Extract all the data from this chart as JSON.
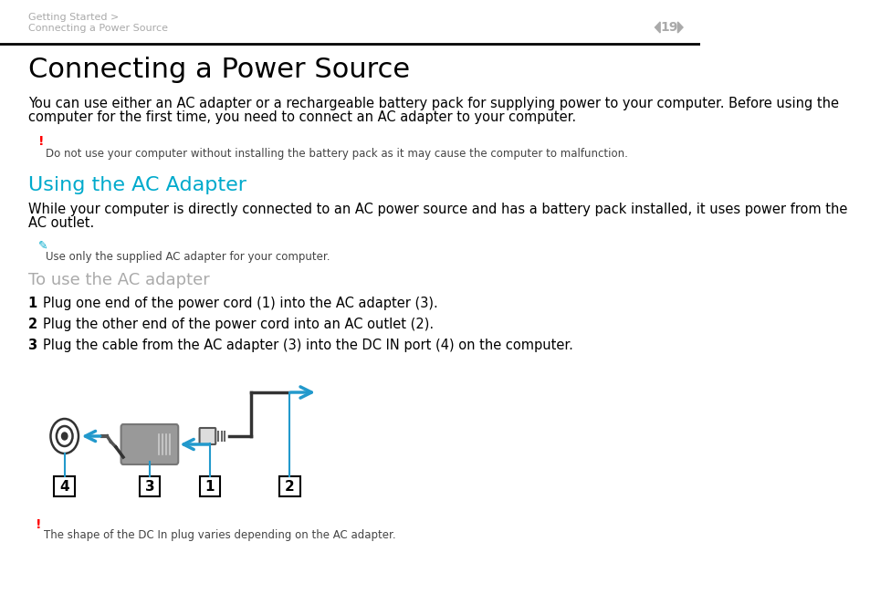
{
  "bg_color": "#ffffff",
  "header_breadcrumb_line1": "Getting Started >",
  "header_breadcrumb_line2": "Connecting a Power Source",
  "header_page": "19",
  "header_color": "#aaaaaa",
  "separator_color": "#000000",
  "title": "Connecting a Power Source",
  "title_fontsize": 22,
  "body_text1_line1": "You can use either an AC adapter or a rechargeable battery pack for supplying power to your computer. Before using the",
  "body_text1_line2": "computer for the first time, you need to connect an AC adapter to your computer.",
  "body_fontsize": 10.5,
  "warning_text": "Do not use your computer without installing the battery pack as it may cause the computer to malfunction.",
  "warning_color": "#ff0000",
  "section_title": "Using the AC Adapter",
  "section_title_color": "#00aacc",
  "section_title_fontsize": 16,
  "body_text2_line1": "While your computer is directly connected to an AC power source and has a battery pack installed, it uses power from the",
  "body_text2_line2": "AC outlet.",
  "note_text": "Use only the supplied AC adapter for your computer.",
  "subsection_title": "To use the AC adapter",
  "subsection_color": "#aaaaaa",
  "subsection_fontsize": 13,
  "step1": "Plug one end of the power cord (1) into the AC adapter (3).",
  "step2": "Plug the other end of the power cord into an AC outlet (2).",
  "step3": "Plug the cable from the AC adapter (3) into the DC IN port (4) on the computer.",
  "arrow_color": "#2299cc",
  "adapter_color": "#999999",
  "footer_warning": "The shape of the DC In plug varies depending on the AC adapter."
}
